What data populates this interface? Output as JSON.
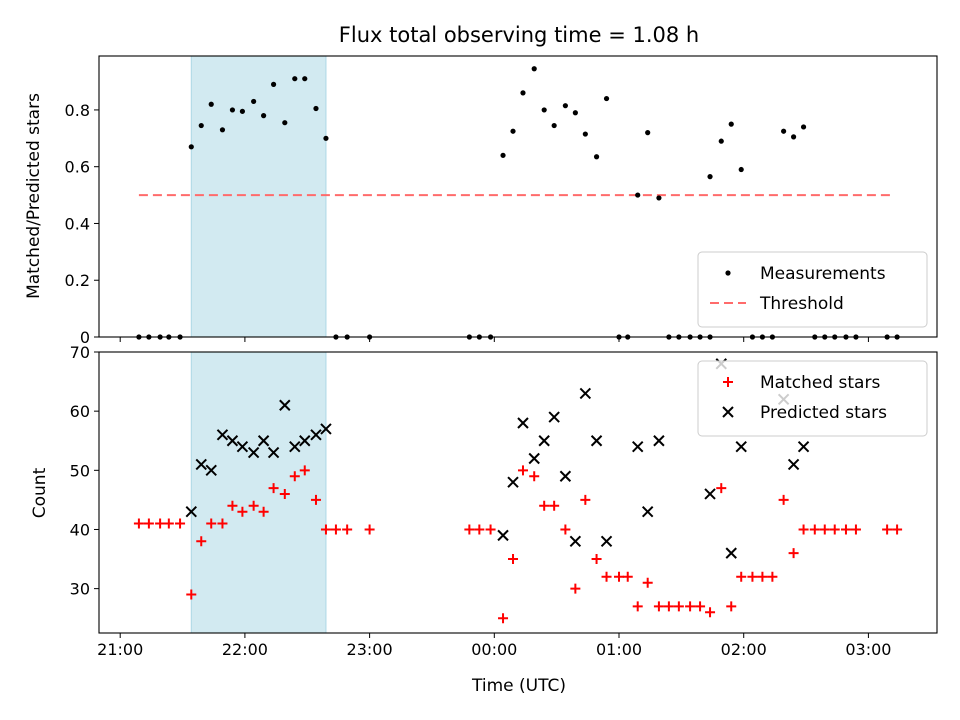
{
  "figure": {
    "title": "Flux total observing time = 1.08 h",
    "xlabel": "Time (UTC)",
    "top_ylabel": "Matched/Predicted stars",
    "bottom_ylabel": "Count",
    "x_ticks": [
      {
        "t": 0,
        "label": "21:00"
      },
      {
        "t": 1,
        "label": "22:00"
      },
      {
        "t": 2,
        "label": "23:00"
      },
      {
        "t": 3,
        "label": "00:00"
      },
      {
        "t": 4,
        "label": "01:00"
      },
      {
        "t": 5,
        "label": "02:00"
      },
      {
        "t": 6,
        "label": "03:00"
      }
    ],
    "shaded_span_hours": [
      0.57,
      1.65
    ],
    "shade_color": "#add8e6"
  },
  "chart_data": [
    {
      "type": "scatter",
      "panel": "top",
      "xlim_hours": [
        -0.17,
        6.55
      ],
      "ylim": [
        0,
        0.99
      ],
      "yticks": [
        0.0,
        0.2,
        0.4,
        0.6,
        0.8
      ],
      "legend_position": "lower-right",
      "threshold": {
        "name": "Threshold",
        "value": 0.5,
        "x_range_hours": [
          0.15,
          6.2
        ],
        "color": "#ff6b6b"
      },
      "series": [
        {
          "name": "Measurements",
          "color": "#000000",
          "marker": "dot",
          "points": [
            [
              0.15,
              0
            ],
            [
              0.23,
              0
            ],
            [
              0.32,
              0
            ],
            [
              0.39,
              0
            ],
            [
              0.48,
              0
            ],
            [
              0.57,
              0.67
            ],
            [
              0.65,
              0.745
            ],
            [
              0.73,
              0.82
            ],
            [
              0.82,
              0.73
            ],
            [
              0.9,
              0.8
            ],
            [
              0.98,
              0.795
            ],
            [
              1.07,
              0.83
            ],
            [
              1.15,
              0.78
            ],
            [
              1.23,
              0.89
            ],
            [
              1.32,
              0.755
            ],
            [
              1.4,
              0.91
            ],
            [
              1.48,
              0.91
            ],
            [
              1.57,
              0.805
            ],
            [
              1.65,
              0.7
            ],
            [
              1.73,
              0
            ],
            [
              1.82,
              0
            ],
            [
              2.0,
              0
            ],
            [
              2.8,
              0
            ],
            [
              2.88,
              0
            ],
            [
              2.97,
              0
            ],
            [
              3.07,
              0.64
            ],
            [
              3.15,
              0.725
            ],
            [
              3.23,
              0.86
            ],
            [
              3.32,
              0.945
            ],
            [
              3.4,
              0.8
            ],
            [
              3.48,
              0.745
            ],
            [
              3.57,
              0.815
            ],
            [
              3.65,
              0.79
            ],
            [
              3.73,
              0.715
            ],
            [
              3.82,
              0.635
            ],
            [
              3.9,
              0.84
            ],
            [
              4.0,
              0
            ],
            [
              4.07,
              0
            ],
            [
              4.15,
              0.5
            ],
            [
              4.23,
              0.72
            ],
            [
              4.32,
              0.49
            ],
            [
              4.4,
              0
            ],
            [
              4.48,
              0
            ],
            [
              4.57,
              0
            ],
            [
              4.65,
              0
            ],
            [
              4.73,
              0
            ],
            [
              4.73,
              0.565
            ],
            [
              4.82,
              0.69
            ],
            [
              4.9,
              0.75
            ],
            [
              4.98,
              0.59
            ],
            [
              5.07,
              0
            ],
            [
              5.15,
              0
            ],
            [
              5.23,
              0
            ],
            [
              5.32,
              0.725
            ],
            [
              5.4,
              0.705
            ],
            [
              5.48,
              0.74
            ],
            [
              5.57,
              0
            ],
            [
              5.65,
              0
            ],
            [
              5.73,
              0
            ],
            [
              5.82,
              0
            ],
            [
              5.9,
              0
            ],
            [
              6.15,
              0
            ],
            [
              6.23,
              0
            ]
          ]
        }
      ]
    },
    {
      "type": "scatter",
      "panel": "bottom",
      "xlim_hours": [
        -0.17,
        6.55
      ],
      "ylim": [
        22.5,
        70
      ],
      "yticks": [
        30,
        40,
        50,
        60,
        70
      ],
      "legend_position": "top-right",
      "series": [
        {
          "name": "Matched stars",
          "color": "#ff0000",
          "marker": "plus",
          "points": [
            [
              0.15,
              41
            ],
            [
              0.23,
              41
            ],
            [
              0.32,
              41
            ],
            [
              0.39,
              41
            ],
            [
              0.48,
              41
            ],
            [
              0.57,
              29
            ],
            [
              0.65,
              38
            ],
            [
              0.73,
              41
            ],
            [
              0.82,
              41
            ],
            [
              0.9,
              44
            ],
            [
              0.98,
              43
            ],
            [
              1.07,
              44
            ],
            [
              1.15,
              43
            ],
            [
              1.23,
              47
            ],
            [
              1.32,
              46
            ],
            [
              1.4,
              49
            ],
            [
              1.48,
              50
            ],
            [
              1.57,
              45
            ],
            [
              1.65,
              40
            ],
            [
              1.73,
              40
            ],
            [
              1.82,
              40
            ],
            [
              2.0,
              40
            ],
            [
              2.8,
              40
            ],
            [
              2.88,
              40
            ],
            [
              2.97,
              40
            ],
            [
              3.07,
              25
            ],
            [
              3.15,
              35
            ],
            [
              3.23,
              50
            ],
            [
              3.32,
              49
            ],
            [
              3.4,
              44
            ],
            [
              3.48,
              44
            ],
            [
              3.57,
              40
            ],
            [
              3.65,
              30
            ],
            [
              3.73,
              45
            ],
            [
              3.82,
              35
            ],
            [
              3.9,
              32
            ],
            [
              4.0,
              32
            ],
            [
              4.07,
              32
            ],
            [
              4.15,
              27
            ],
            [
              4.23,
              31
            ],
            [
              4.32,
              27
            ],
            [
              4.4,
              27
            ],
            [
              4.48,
              27
            ],
            [
              4.57,
              27
            ],
            [
              4.65,
              27
            ],
            [
              4.73,
              26
            ],
            [
              4.82,
              47
            ],
            [
              4.9,
              27
            ],
            [
              4.98,
              32
            ],
            [
              5.07,
              32
            ],
            [
              5.15,
              32
            ],
            [
              5.23,
              32
            ],
            [
              5.32,
              45
            ],
            [
              5.4,
              36
            ],
            [
              5.48,
              40
            ],
            [
              5.57,
              40
            ],
            [
              5.65,
              40
            ],
            [
              5.73,
              40
            ],
            [
              5.82,
              40
            ],
            [
              5.9,
              40
            ],
            [
              6.15,
              40
            ],
            [
              6.23,
              40
            ]
          ]
        },
        {
          "name": "Predicted stars",
          "color": "#000000",
          "marker": "x",
          "points": [
            [
              0.57,
              43
            ],
            [
              0.65,
              51
            ],
            [
              0.73,
              50
            ],
            [
              0.82,
              56
            ],
            [
              0.9,
              55
            ],
            [
              0.98,
              54
            ],
            [
              1.07,
              53
            ],
            [
              1.15,
              55
            ],
            [
              1.23,
              53
            ],
            [
              1.32,
              61
            ],
            [
              1.4,
              54
            ],
            [
              1.48,
              55
            ],
            [
              1.57,
              56
            ],
            [
              1.65,
              57
            ],
            [
              3.07,
              39
            ],
            [
              3.15,
              48
            ],
            [
              3.23,
              58
            ],
            [
              3.32,
              52
            ],
            [
              3.4,
              55
            ],
            [
              3.48,
              59
            ],
            [
              3.57,
              49
            ],
            [
              3.65,
              38
            ],
            [
              3.73,
              63
            ],
            [
              3.82,
              55
            ],
            [
              3.9,
              38
            ],
            [
              4.15,
              54
            ],
            [
              4.23,
              43
            ],
            [
              4.32,
              55
            ],
            [
              4.73,
              46
            ],
            [
              4.82,
              68
            ],
            [
              4.9,
              36
            ],
            [
              4.98,
              54
            ],
            [
              5.32,
              62
            ],
            [
              5.4,
              51
            ],
            [
              5.48,
              54
            ]
          ]
        }
      ]
    }
  ]
}
